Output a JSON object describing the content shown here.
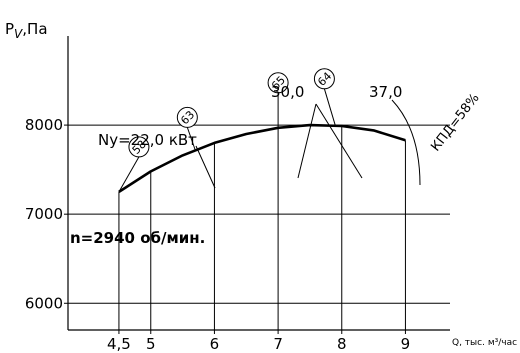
{
  "chart_data": {
    "type": "line",
    "ylabel_main": "P",
    "ylabel_sub": "V",
    "ylabel_unit": ",Па",
    "xlabel": "Q, тыс. м³/час",
    "xlim": [
      3.7,
      9.7
    ],
    "ylim": [
      5700,
      9000
    ],
    "x_ticks": [
      "4,5",
      "5",
      "6",
      "7",
      "8",
      "9"
    ],
    "y_ticks": [
      "8000",
      "7000",
      "6000"
    ],
    "y_tick_values": [
      8000,
      7000,
      6000
    ],
    "x_tick_values": [
      4.5,
      5,
      6,
      7,
      8,
      9
    ],
    "grid": true,
    "series": [
      {
        "name": "n=2940 об/мин.",
        "x": [
          4.5,
          5.0,
          5.5,
          6.0,
          6.5,
          7.0,
          7.5,
          8.0,
          8.5,
          9.0
        ],
        "y": [
          7250,
          7480,
          7660,
          7800,
          7900,
          7970,
          8000,
          7990,
          7940,
          7830
        ]
      }
    ],
    "efficiency_marks": [
      {
        "label": "58",
        "x": 4.5
      },
      {
        "label": "63",
        "x": 5.7
      },
      {
        "label": "65",
        "x": 7.0
      },
      {
        "label": "64",
        "x": 7.9
      }
    ],
    "annotations": {
      "speed": "n=2940 об/мин.",
      "power1": "Ny=22,0 кВт",
      "power2": "30,0",
      "power3": "37,0",
      "efficiency": "КПД=58%",
      "efficiency_value": "58"
    }
  }
}
